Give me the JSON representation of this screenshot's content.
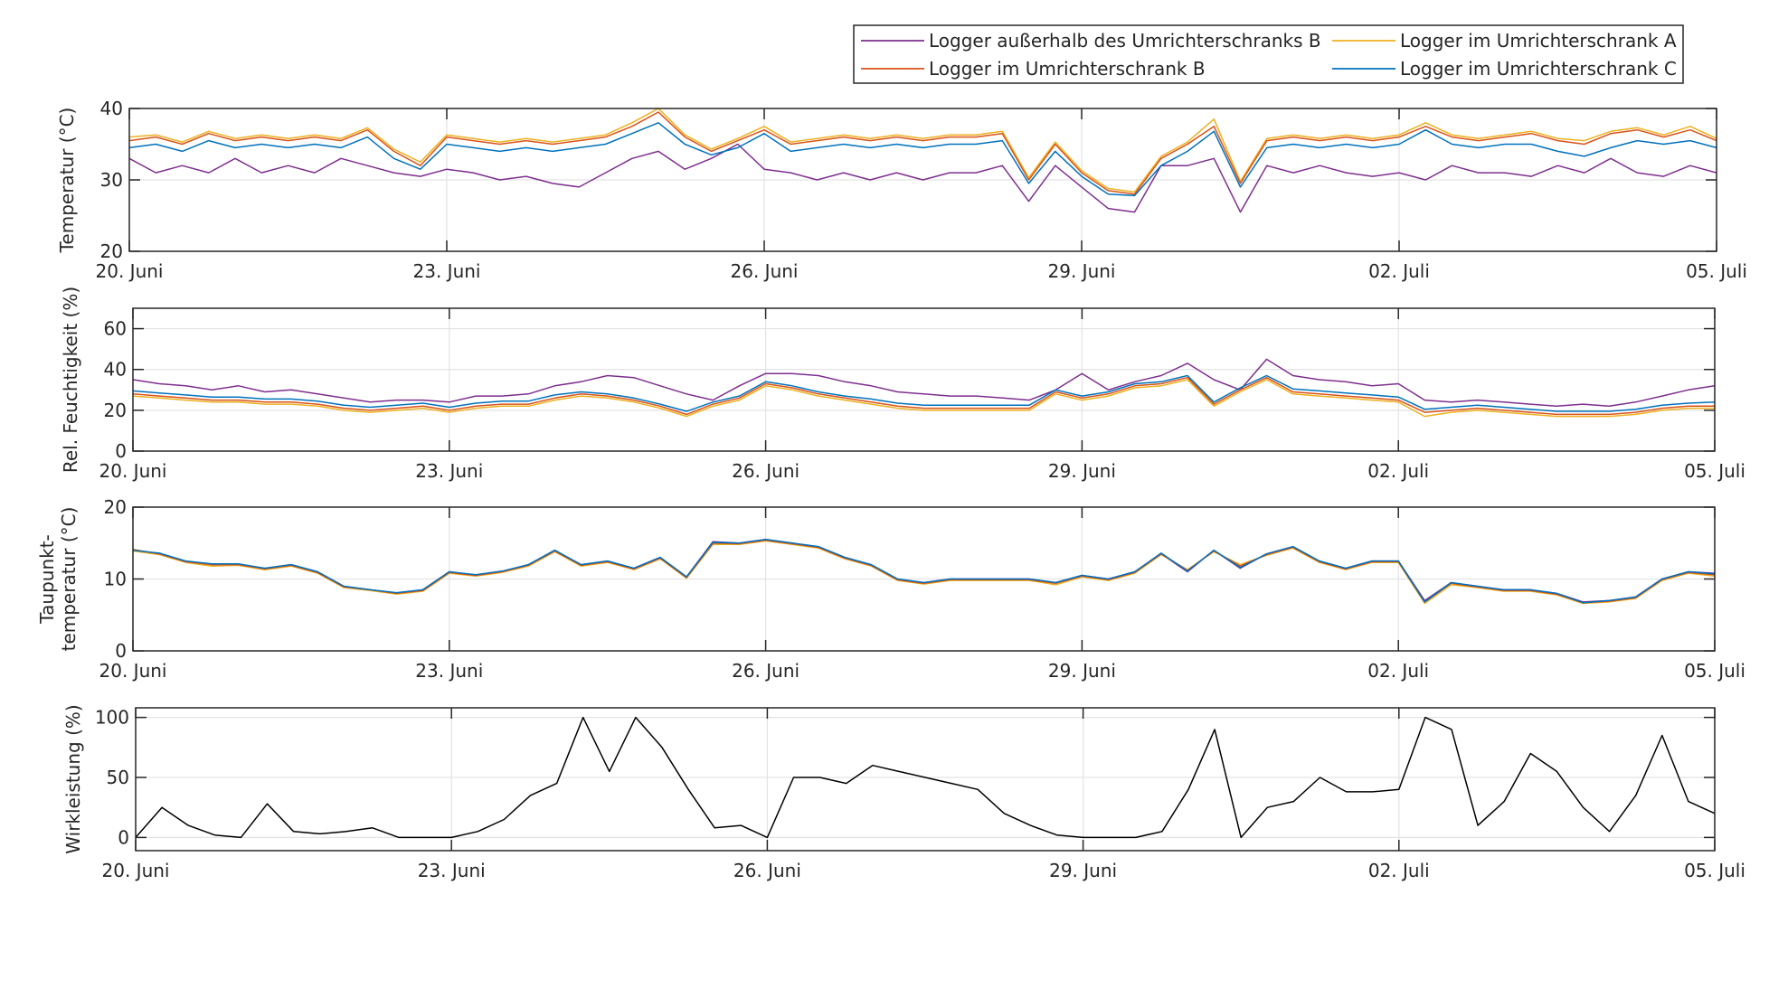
{
  "legend": {
    "position": "top-right",
    "entries": [
      {
        "label": "Logger außerhalb des Umrichterschranks B",
        "color": "#7E2F8E"
      },
      {
        "label": "Logger im Umrichterschrank A",
        "color": "#EDB120"
      },
      {
        "label": "Logger im Umrichterschrank B",
        "color": "#D95319"
      },
      {
        "label": "Logger im Umrichterschrank C",
        "color": "#0072BD"
      }
    ]
  },
  "chart_data": [
    {
      "type": "line",
      "ylabel": "Temperatur (°C)",
      "ylim": [
        20,
        40
      ],
      "yticks": [
        20,
        30,
        40
      ],
      "xlim": [
        0,
        15
      ],
      "xticks": [
        0,
        3,
        6,
        9,
        12,
        15
      ],
      "xticklabels": [
        "20. Juni",
        "23. Juni",
        "26. Juni",
        "29. Juni",
        "02. Juli",
        "05. Juli"
      ],
      "x_unit": "days since 20. Juni, 6-hour steps",
      "grid": true,
      "series": [
        {
          "name": "Logger außerhalb des Umrichterschranks B",
          "color": "#7E2F8E",
          "values": [
            33,
            31,
            32,
            31,
            33,
            31,
            32,
            31,
            33,
            32,
            31,
            30.5,
            31.5,
            31,
            30,
            30.5,
            29.5,
            29,
            31,
            33,
            34,
            31.5,
            33,
            35,
            31.5,
            31,
            30,
            31,
            30,
            31,
            30,
            31,
            31,
            32,
            27,
            32,
            29,
            26,
            25.5,
            32,
            32,
            33,
            25.5,
            32,
            31,
            32,
            31,
            30.5,
            31,
            30,
            32,
            31,
            31,
            30.5,
            32,
            31,
            33,
            31,
            30.5,
            32,
            31
          ]
        },
        {
          "name": "Logger im Umrichterschrank A",
          "color": "#EDB120",
          "values": [
            36,
            36.3,
            35.3,
            36.8,
            35.8,
            36.3,
            35.8,
            36.3,
            35.8,
            37.3,
            34.3,
            32.5,
            36.3,
            35.8,
            35.3,
            35.8,
            35.3,
            35.8,
            36.3,
            38,
            40,
            36.3,
            34.3,
            35.8,
            37.5,
            35.3,
            35.8,
            36.3,
            35.8,
            36.3,
            35.8,
            36.3,
            36.3,
            36.8,
            30.3,
            35.3,
            31.3,
            28.8,
            28.3,
            33.3,
            35.3,
            38.5,
            29.8,
            35.8,
            36.3,
            35.8,
            36.3,
            35.8,
            36.3,
            38,
            36.3,
            35.8,
            36.3,
            36.8,
            35.8,
            35.5,
            36.8,
            37.3,
            36.3,
            37.5,
            35.8
          ]
        },
        {
          "name": "Logger im Umrichterschrank B",
          "color": "#D95319",
          "values": [
            35.5,
            36,
            35,
            36.5,
            35.5,
            36,
            35.5,
            36,
            35.5,
            37,
            34,
            32,
            36,
            35.5,
            35,
            35.5,
            35,
            35.5,
            36,
            37.5,
            39.5,
            36,
            34,
            35.5,
            37,
            35,
            35.5,
            36,
            35.5,
            36,
            35.5,
            36,
            36,
            36.5,
            30,
            35,
            31,
            28.5,
            28,
            33,
            35,
            37.5,
            29.5,
            35.5,
            36,
            35.5,
            36,
            35.5,
            36,
            37.5,
            36,
            35.5,
            36,
            36.5,
            35.5,
            35,
            36.5,
            37,
            36,
            37,
            35.5
          ]
        },
        {
          "name": "Logger im Umrichterschrank C",
          "color": "#0072BD",
          "values": [
            34.5,
            35,
            34,
            35.5,
            34.5,
            35,
            34.5,
            35,
            34.5,
            36,
            33,
            31.5,
            35,
            34.5,
            34,
            34.5,
            34,
            34.5,
            35,
            36.5,
            38,
            35,
            33.5,
            34.5,
            36.5,
            34,
            34.5,
            35,
            34.5,
            35,
            34.5,
            35,
            35,
            35.5,
            29.5,
            34,
            30.5,
            28,
            27.8,
            32,
            34,
            36.8,
            29,
            34.5,
            35,
            34.5,
            35,
            34.5,
            35,
            37,
            35,
            34.5,
            35,
            35,
            34,
            33.3,
            34.5,
            35.5,
            35,
            35.5,
            34.5
          ]
        }
      ]
    },
    {
      "type": "line",
      "ylabel": "Rel. Feuchtigkeit (%)",
      "ylim": [
        0,
        70
      ],
      "yticks": [
        0,
        20,
        40,
        60
      ],
      "xlim": [
        0,
        15
      ],
      "xticks": [
        0,
        3,
        6,
        9,
        12,
        15
      ],
      "xticklabels": [
        "20. Juni",
        "23. Juni",
        "26. Juni",
        "29. Juni",
        "02. Juli",
        "05. Juli"
      ],
      "grid": true,
      "series": [
        {
          "name": "Logger außerhalb des Umrichterschranks B",
          "color": "#7E2F8E",
          "values": [
            35,
            33,
            32,
            30,
            32,
            29,
            30,
            28,
            26,
            24,
            25,
            25,
            24,
            27,
            27,
            28,
            32,
            34,
            37,
            36,
            32,
            28,
            25,
            32,
            38,
            38,
            37,
            34,
            32,
            29,
            28,
            27,
            27,
            26,
            25,
            30,
            38,
            30,
            34,
            37,
            43,
            35,
            30,
            45,
            37,
            35,
            34,
            32,
            33,
            25,
            24,
            25,
            24,
            23,
            22,
            23,
            22,
            24,
            27,
            30,
            32
          ]
        },
        {
          "name": "Logger im Umrichterschrank A",
          "color": "#EDB120",
          "values": [
            27,
            26,
            25,
            24,
            24,
            23,
            23,
            22,
            20,
            19,
            20,
            21,
            19,
            21,
            22,
            22,
            25,
            27,
            26,
            24,
            21,
            17,
            22,
            25,
            32,
            30,
            27,
            25,
            23,
            21,
            20,
            20,
            20,
            20,
            20,
            28,
            25,
            27,
            31,
            32,
            35,
            22,
            29,
            35,
            28,
            27,
            26,
            25,
            24,
            17,
            19,
            20,
            19,
            18,
            17,
            17,
            17,
            18,
            20,
            21,
            21
          ]
        },
        {
          "name": "Logger im Umrichterschrank B",
          "color": "#D95319",
          "values": [
            28,
            27,
            26,
            25,
            25,
            24,
            24,
            23,
            21,
            20,
            21,
            22,
            20,
            22,
            23,
            23,
            26,
            28,
            27,
            25,
            22,
            18,
            23,
            26,
            33,
            31,
            28,
            26,
            24,
            22,
            21,
            21,
            21,
            21,
            21,
            29,
            26,
            28,
            32,
            33,
            36,
            23,
            30,
            36,
            29,
            28,
            27,
            26,
            25,
            19,
            20,
            21,
            20,
            19,
            18,
            18,
            18,
            19,
            21,
            22,
            22
          ]
        },
        {
          "name": "Logger im Umrichterschrank C",
          "color": "#0072BD",
          "values": [
            29.5,
            28.5,
            27.5,
            26.5,
            26.5,
            25.5,
            25.5,
            24.5,
            22.5,
            21.5,
            22.5,
            23.5,
            21.5,
            23.5,
            24.5,
            24.5,
            27.5,
            29,
            28,
            26,
            23,
            19.5,
            24,
            27,
            34,
            32,
            29,
            27,
            25.5,
            23.5,
            22.5,
            22.5,
            22.5,
            22.5,
            22.5,
            30,
            27,
            29,
            33,
            34,
            37,
            24,
            31,
            37,
            30.5,
            29.5,
            28.5,
            27.5,
            26.5,
            20.5,
            21.5,
            22.5,
            21.5,
            20.5,
            19.5,
            19.5,
            19.5,
            20.5,
            22.5,
            23.5,
            24
          ]
        }
      ]
    },
    {
      "type": "line",
      "ylabel": "Taupunkt-\ntemperatur (°C)",
      "ylabel_lines": [
        "Taupunkt-",
        "temperatur (°C)"
      ],
      "ylim": [
        0,
        20
      ],
      "yticks": [
        0,
        10,
        20
      ],
      "xlim": [
        0,
        15
      ],
      "xticks": [
        0,
        3,
        6,
        9,
        12,
        15
      ],
      "xticklabels": [
        "20. Juni",
        "23. Juni",
        "26. Juni",
        "29. Juni",
        "02. Juli",
        "05. Juli"
      ],
      "grid": true,
      "series": [
        {
          "name": "Logger außerhalb des Umrichterschranks B",
          "color": "#7E2F8E",
          "values": [
            14,
            13.5,
            12.5,
            12,
            12,
            11.5,
            12,
            11,
            9,
            8.5,
            8,
            8.5,
            11,
            10.5,
            11,
            12,
            14,
            12,
            12.5,
            11.5,
            13,
            10.3,
            15.2,
            15,
            15.5,
            15,
            14.5,
            13,
            12,
            10,
            9.5,
            10,
            10,
            10,
            10,
            9.5,
            10.5,
            10,
            11,
            13.5,
            11,
            14,
            11.5,
            13.5,
            14.5,
            12.5,
            11.5,
            12.5,
            12.5,
            7,
            9.5,
            9,
            8.5,
            8.5,
            8,
            6.8,
            7,
            7.5,
            10,
            11,
            10.8
          ]
        },
        {
          "name": "Logger im Umrichterschrank A",
          "color": "#EDB120",
          "values": [
            13.9,
            13.4,
            12.3,
            11.8,
            11.9,
            11.3,
            11.8,
            10.8,
            8.8,
            8.4,
            7.9,
            8.3,
            10.8,
            10.4,
            10.9,
            11.8,
            13.8,
            11.8,
            12.3,
            11.3,
            12.8,
            10.1,
            14.8,
            14.8,
            15.3,
            14.8,
            14.3,
            12.8,
            11.8,
            9.8,
            9.3,
            9.8,
            9.8,
            9.8,
            9.8,
            9.2,
            10.3,
            9.8,
            10.8,
            13.4,
            11.3,
            13.8,
            12,
            13.3,
            14.3,
            12.3,
            11.3,
            12.3,
            12.3,
            6.6,
            9.2,
            8.8,
            8.3,
            8.3,
            7.8,
            6.6,
            6.8,
            7.3,
            9.8,
            10.8,
            10.4
          ]
        },
        {
          "name": "Logger im Umrichterschrank B",
          "color": "#D95319",
          "values": [
            14.1,
            13.5,
            12.4,
            12,
            12,
            11.4,
            11.9,
            10.9,
            8.9,
            8.5,
            8,
            8.4,
            10.9,
            10.5,
            11,
            11.9,
            13.9,
            11.9,
            12.4,
            11.4,
            12.9,
            10.2,
            15,
            14.9,
            15.4,
            14.9,
            14.4,
            12.9,
            11.9,
            9.9,
            9.4,
            9.9,
            9.9,
            9.9,
            9.9,
            9.4,
            10.4,
            9.9,
            10.9,
            13.5,
            11.2,
            13.9,
            11.8,
            13.4,
            14.4,
            12.4,
            11.4,
            12.4,
            12.4,
            6.8,
            9.4,
            8.9,
            8.4,
            8.4,
            7.9,
            6.7,
            6.9,
            7.4,
            9.9,
            10.9,
            10.6
          ]
        },
        {
          "name": "Logger im Umrichterschrank C",
          "color": "#0072BD",
          "values": [
            14,
            13.6,
            12.5,
            12.1,
            12.1,
            11.5,
            12,
            11,
            9,
            8.5,
            8.1,
            8.5,
            11,
            10.6,
            11.1,
            12,
            14,
            12,
            12.5,
            11.5,
            13,
            10.3,
            15.1,
            15,
            15.5,
            15,
            14.5,
            13,
            12,
            10,
            9.5,
            10,
            10,
            10,
            10,
            9.5,
            10.5,
            10,
            11,
            13.6,
            11.1,
            14,
            11.6,
            13.5,
            14.5,
            12.5,
            11.5,
            12.5,
            12.5,
            6.8,
            9.5,
            9,
            8.5,
            8.5,
            8,
            6.7,
            7,
            7.5,
            10,
            11,
            10.7
          ]
        }
      ]
    },
    {
      "type": "line",
      "ylabel": "Wirkleistung (%)",
      "ylim": [
        -11,
        108
      ],
      "yticks": [
        0,
        50,
        100
      ],
      "xlim": [
        0,
        15
      ],
      "xticks": [
        0,
        3,
        6,
        9,
        12,
        15
      ],
      "xticklabels": [
        "20. Juni",
        "23. Juni",
        "26. Juni",
        "29. Juni",
        "02. Juli",
        "05. Juli"
      ],
      "grid": true,
      "series": [
        {
          "name": "Wirkleistung",
          "color": "#000000",
          "values": [
            0,
            25,
            10,
            2,
            0,
            28,
            5,
            3,
            5,
            8,
            0,
            0,
            0,
            5,
            15,
            35,
            45,
            100,
            55,
            100,
            75,
            40,
            8,
            10,
            0,
            50,
            50,
            45,
            60,
            55,
            50,
            45,
            40,
            20,
            10,
            2,
            0,
            0,
            0,
            5,
            40,
            90,
            0,
            25,
            30,
            50,
            38,
            38,
            40,
            100,
            90,
            10,
            30,
            70,
            55,
            25,
            5,
            35,
            85,
            30,
            20
          ]
        }
      ]
    }
  ]
}
